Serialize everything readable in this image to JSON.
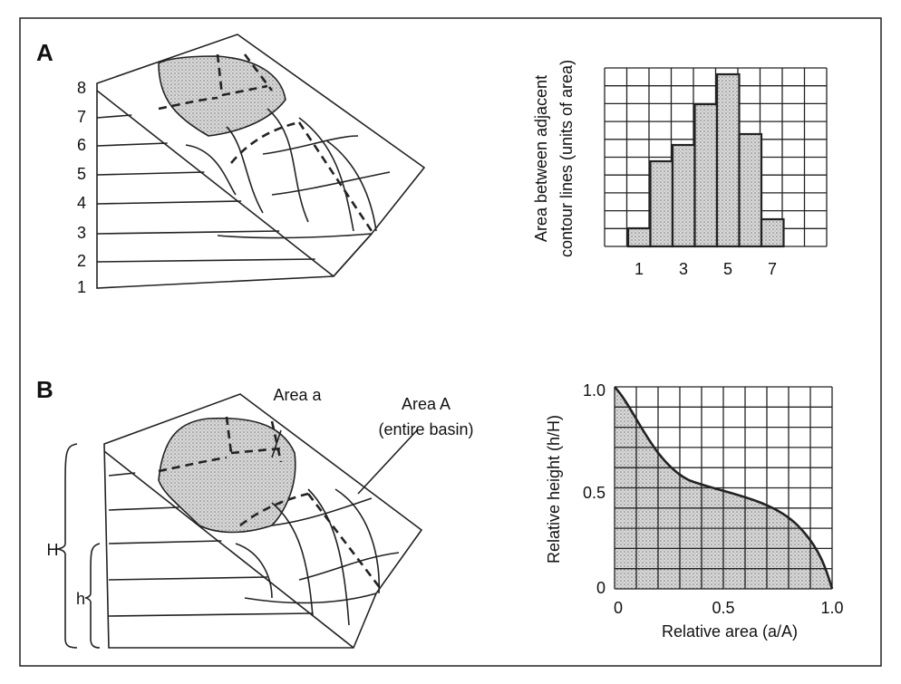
{
  "panel_a": {
    "label": "A",
    "contour_labels": [
      "8",
      "7",
      "6",
      "5",
      "4",
      "3",
      "2",
      "1"
    ],
    "histogram": {
      "y_label_lines": [
        "Area between adjacent",
        "contour lines (units of area)"
      ],
      "x_tick_labels": [
        "1",
        "3",
        "5",
        "7"
      ]
    }
  },
  "panel_b": {
    "label": "B",
    "annotations": {
      "area_a": "Area a",
      "area_A": "Area A",
      "area_A_note": "(entire basin)",
      "big_h": "H",
      "small_h": "h"
    },
    "curve_chart": {
      "y_label": "Relative height (h/H)",
      "x_label": "Relative area (a/A)",
      "y_tick_labels": [
        "1.0",
        "0.5",
        "0"
      ],
      "x_tick_labels": [
        "0",
        "0.5",
        "1.0"
      ]
    }
  }
}
